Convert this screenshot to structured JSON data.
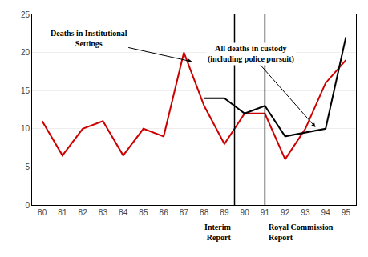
{
  "chart_data": {
    "type": "line",
    "series": [
      {
        "x": [
          80,
          81,
          82,
          83,
          84,
          85,
          86,
          87,
          88,
          89,
          90,
          91,
          92,
          93,
          94,
          95
        ],
        "values": [
          11,
          6.5,
          10,
          11,
          6.5,
          10,
          9,
          20,
          13,
          8,
          12,
          12,
          6,
          10,
          16,
          19
        ],
        "color": "#cc0000"
      },
      {
        "x": [
          88,
          89,
          90,
          91,
          92,
          93,
          94,
          95
        ],
        "values": [
          14,
          14,
          12,
          13,
          9,
          9.5,
          10,
          22
        ],
        "color": "#000000"
      }
    ],
    "xlim": [
      79.5,
      95.5
    ],
    "xticks": [
      80,
      81,
      82,
      83,
      84,
      85,
      86,
      87,
      88,
      89,
      90,
      91,
      92,
      93,
      94,
      95
    ],
    "ylim": [
      0,
      25
    ],
    "yticks": [
      0,
      5,
      10,
      15,
      20,
      25
    ],
    "grid": "y",
    "annotations": [
      "Deaths in Institutional\nSettings",
      "All deaths in custody\n(including police pursuit)"
    ],
    "vlines": [
      {
        "x": 89.5,
        "label": "Interim\nReport"
      },
      {
        "x": 91,
        "label": "Royal Commission\nReport"
      }
    ]
  }
}
